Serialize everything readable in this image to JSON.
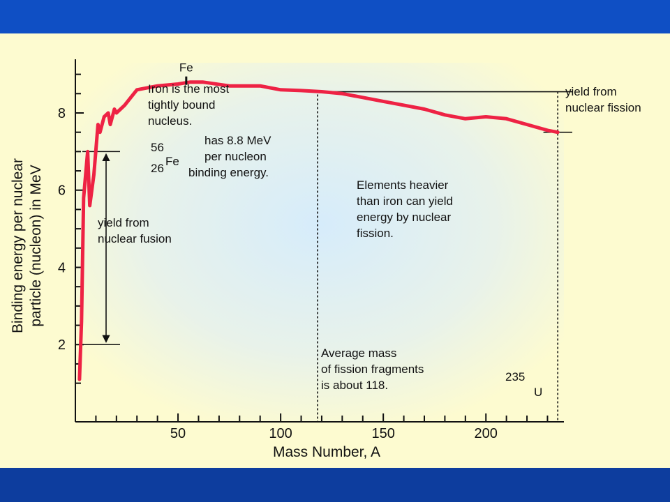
{
  "colors": {
    "top_bar": "#0f4fc4",
    "bottom_bar": "#0d3d9e",
    "background": "#fdfbd0",
    "curve": "#ee2244"
  },
  "chart_data": {
    "type": "line",
    "xlabel": "Mass Number, A",
    "ylabel_lines": [
      "Binding energy per nuclear",
      "particle (nucleon) in MeV"
    ],
    "xlim": [
      0,
      238
    ],
    "ylim": [
      0,
      9.3
    ],
    "x_ticks": [
      50,
      100,
      150,
      200
    ],
    "y_ticks": [
      2,
      4,
      6,
      8
    ],
    "series": [
      {
        "x": [
          2,
          3,
          4,
          6,
          7,
          9,
          11,
          12,
          14,
          16,
          17,
          19,
          20,
          22,
          24,
          27,
          30,
          40,
          50,
          56,
          62,
          75,
          90,
          100,
          110,
          120,
          130,
          140,
          150,
          160,
          170,
          180,
          190,
          200,
          210,
          220,
          230,
          235
        ],
        "y": [
          1.1,
          2.6,
          5.8,
          7.0,
          5.6,
          6.4,
          7.7,
          7.5,
          7.9,
          8.0,
          7.7,
          8.1,
          8.0,
          8.1,
          8.2,
          8.4,
          8.6,
          8.7,
          8.75,
          8.8,
          8.8,
          8.7,
          8.7,
          8.6,
          8.58,
          8.55,
          8.5,
          8.4,
          8.3,
          8.2,
          8.1,
          7.95,
          7.85,
          7.9,
          7.85,
          7.7,
          7.55,
          7.5
        ]
      }
    ],
    "annotations": {
      "fe_marker": "Fe",
      "iron_note": [
        "Iron is the most",
        "tightly bound",
        "nucleus."
      ],
      "fe_mass": "56",
      "fe_atomic": "26",
      "fe_symbol": "Fe",
      "fe_energy": [
        "has 8.8 MeV",
        "per nucleon",
        "binding energy."
      ],
      "fusion_yield": [
        "yield from",
        "nuclear fusion"
      ],
      "fission_yield": [
        "yield from",
        "nuclear fission"
      ],
      "heavier_note": [
        "Elements heavier",
        "than iron can yield",
        "energy by nuclear",
        "fission."
      ],
      "fragment_note": [
        "Average mass",
        "of fission fragments",
        "is about 118."
      ],
      "u_mass": "235",
      "u_symbol": "U"
    },
    "reference_lines": {
      "fission_fragment_mass": 118,
      "uranium_mass": 235,
      "fe_level": 8.55,
      "u_level": 7.5,
      "fusion_top": 7.0,
      "fusion_bottom": 2.0
    }
  }
}
